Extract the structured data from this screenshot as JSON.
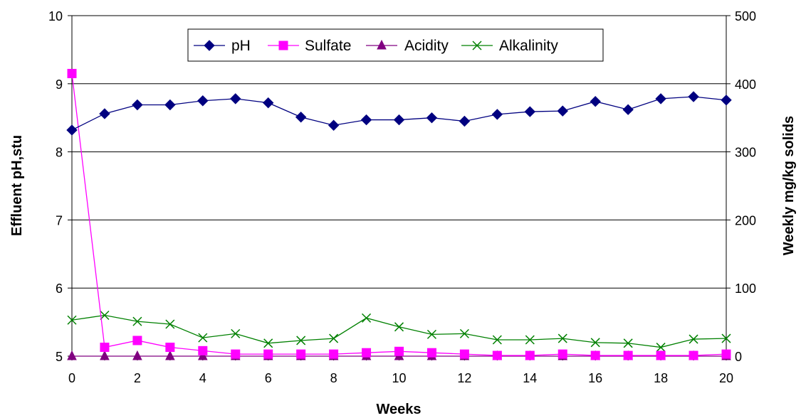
{
  "chart_data": {
    "type": "line",
    "xlabel": "Weeks",
    "ylabel_left": "Effluent pH,stu",
    "ylabel_right": "Weekly mg/kg solids",
    "x": [
      0,
      1,
      2,
      3,
      4,
      5,
      6,
      7,
      8,
      9,
      10,
      11,
      12,
      13,
      14,
      15,
      16,
      17,
      18,
      19,
      20
    ],
    "xlim": [
      0,
      20
    ],
    "x_ticks": [
      0,
      2,
      4,
      6,
      8,
      10,
      12,
      14,
      16,
      18,
      20
    ],
    "ylim_left": [
      5,
      10
    ],
    "y_ticks_left": [
      5,
      6,
      7,
      8,
      9,
      10
    ],
    "ylim_right": [
      0,
      500
    ],
    "y_ticks_right": [
      0,
      100,
      200,
      300,
      400,
      500
    ],
    "grid": "horizontal",
    "legend": "top-center",
    "series": [
      {
        "name": "pH",
        "axis": "left",
        "color": "#000080",
        "marker": "diamond",
        "values": [
          8.32,
          8.56,
          8.69,
          8.69,
          8.75,
          8.78,
          8.72,
          8.51,
          8.39,
          8.47,
          8.47,
          8.5,
          8.45,
          8.55,
          8.59,
          8.6,
          8.74,
          8.62,
          8.78,
          8.81,
          8.76
        ]
      },
      {
        "name": "Sulfate",
        "axis": "right",
        "color": "#FF00FF",
        "marker": "square",
        "values": [
          415,
          13,
          23,
          13,
          8,
          3,
          3,
          3,
          3,
          5,
          7,
          5,
          3,
          1,
          1,
          3,
          1,
          1,
          1,
          1,
          3
        ]
      },
      {
        "name": "Acidity",
        "axis": "right",
        "color": "#800080",
        "marker": "triangle",
        "values": [
          0,
          0,
          0,
          0,
          0,
          0,
          0,
          0,
          0,
          0,
          0,
          0,
          0,
          0,
          0,
          0,
          0,
          0,
          0,
          0,
          0
        ]
      },
      {
        "name": "Alkalinity",
        "axis": "right",
        "color": "#008000",
        "marker": "x",
        "values": [
          53,
          60,
          51,
          47,
          27,
          33,
          19,
          23,
          26,
          56,
          43,
          32,
          33,
          24,
          24,
          26,
          20,
          19,
          13,
          25,
          26
        ]
      }
    ]
  }
}
